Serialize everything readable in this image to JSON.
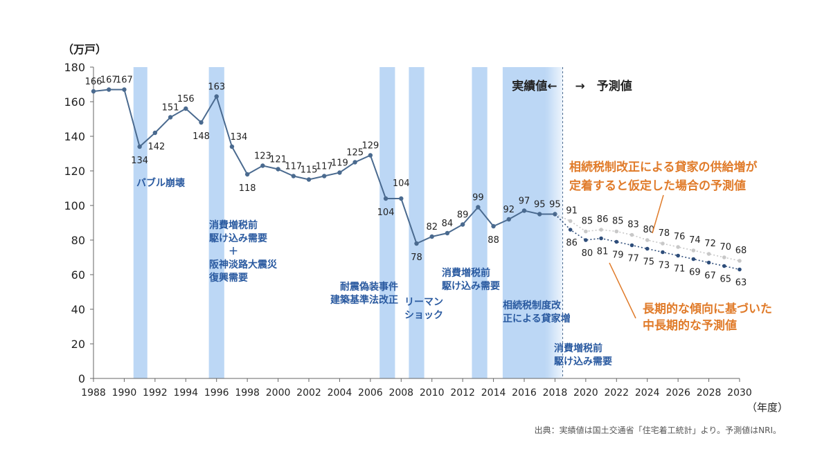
{
  "chart_data": {
    "type": "line",
    "y_unit_label": "（万戸）",
    "x_unit_label": "（年度）",
    "ylim": [
      0,
      180
    ],
    "yticks": [
      0,
      20,
      40,
      60,
      80,
      100,
      120,
      140,
      160,
      180
    ],
    "xlim": [
      1988,
      2030
    ],
    "xticks": [
      1988,
      1990,
      1992,
      1994,
      1996,
      1998,
      2000,
      2002,
      2004,
      2006,
      2008,
      2010,
      2012,
      2014,
      2016,
      2018,
      2020,
      2022,
      2024,
      2026,
      2028,
      2030
    ],
    "series": [
      {
        "name": "実績値",
        "color": "#4a6a8f",
        "x": [
          1988,
          1989,
          1990,
          1991,
          1992,
          1993,
          1994,
          1995,
          1996,
          1997,
          1998,
          1999,
          2000,
          2001,
          2002,
          2003,
          2004,
          2005,
          2006,
          2007,
          2008,
          2009,
          2010,
          2011,
          2012,
          2013,
          2014,
          2015,
          2016,
          2017,
          2018
        ],
        "y": [
          166,
          167,
          167,
          134,
          142,
          151,
          156,
          148,
          163,
          134,
          118,
          123,
          121,
          117,
          115,
          117,
          119,
          125,
          129,
          104,
          104,
          78,
          82,
          84,
          89,
          99,
          88,
          92,
          97,
          95,
          95
        ]
      },
      {
        "name": "相続税制改正による貸家の供給増が定着すると仮定した場合の予測値",
        "color": "#c8c8c8",
        "x": [
          2018,
          2019,
          2020,
          2021,
          2022,
          2023,
          2024,
          2025,
          2026,
          2027,
          2028,
          2029,
          2030
        ],
        "y": [
          95,
          91,
          85,
          86,
          85,
          83,
          80,
          78,
          76,
          74,
          72,
          70,
          68
        ]
      },
      {
        "name": "長期的な傾向に基づいた中長期的な予測値",
        "color": "#2e4d7a",
        "x": [
          2018,
          2019,
          2020,
          2021,
          2022,
          2023,
          2024,
          2025,
          2026,
          2027,
          2028,
          2029,
          2030
        ],
        "y": [
          95,
          86,
          80,
          81,
          79,
          77,
          75,
          73,
          71,
          69,
          67,
          65,
          63
        ]
      }
    ],
    "bands": [
      {
        "x0": 1990.6,
        "x1": 1991.5,
        "label": "バブル崩壊"
      },
      {
        "x0": 1995.5,
        "x1": 1996.5,
        "label": "消費増税前\n駆け込み需要\n＋\n阪神淡路大震災\n復興需要"
      },
      {
        "x0": 2006.6,
        "x1": 2007.6,
        "label": "耐震偽装事件\n建築基準法改正"
      },
      {
        "x0": 2008.5,
        "x1": 2009.5,
        "label": "リーマン\nショック"
      },
      {
        "x0": 2012.6,
        "x1": 2013.6,
        "label": "消費増税前\n駆け込み需要"
      },
      {
        "x0": 2014.6,
        "x1": 2017.4,
        "label": "相続税制度改\n正による貸家増"
      },
      {
        "x0": 2017.4,
        "x1": 2018.5,
        "label": "消費増税前\n駆け込み需要"
      }
    ],
    "divider_x": 2018.5,
    "divider_left_label": "実績値←",
    "divider_right_label": "→　予測値",
    "orange_annotations": [
      "相続税制改正による貸家の供給増が\n定着すると仮定した場合の予測値",
      "長期的な傾向に基づいた\n中長期的な予測値"
    ],
    "colors": {
      "band": "#bcd7f5",
      "actual": "#4a6a8f",
      "forecast_high": "#c8c8c8",
      "forecast_low": "#2e4d7a",
      "annotation": "#e07b2a",
      "band_label": "#2a5aa0"
    }
  },
  "source": "出典：実績値は国土交通省「住宅着工統計」より。予測値はNRI。"
}
